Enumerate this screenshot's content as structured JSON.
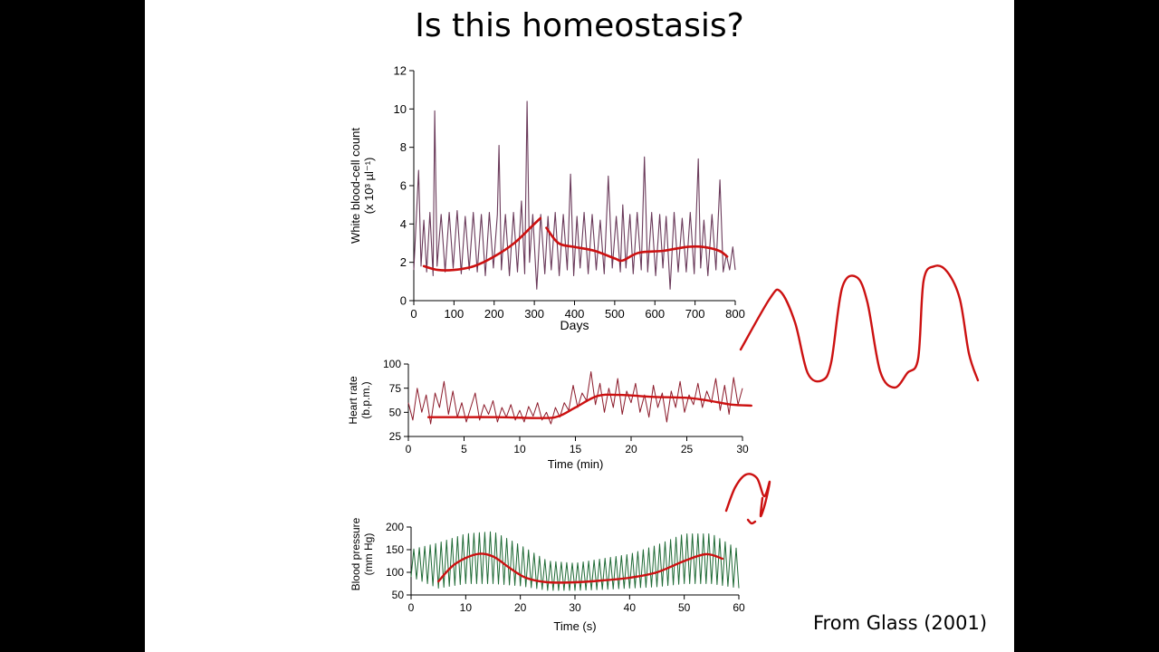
{
  "slide": {
    "title": "Is this homeostasis?",
    "citation": "From Glass (2001)"
  },
  "colors": {
    "trend": "#cc1111",
    "wbc_trace": "#6a3a5a",
    "hr_trace": "#8b1a2a",
    "bp_trace": "#1f6a35",
    "ink": "#000000",
    "annotation": "#cc1111"
  },
  "chart_data": [
    {
      "id": "wbc",
      "type": "line",
      "title": "",
      "xlabel": "Days",
      "ylabel": [
        "White blood-cell count",
        "(x 10³ µl⁻¹)"
      ],
      "xlim": [
        0,
        800
      ],
      "ylim": [
        0,
        12
      ],
      "xticks": [
        0,
        100,
        200,
        300,
        400,
        500,
        600,
        700,
        800
      ],
      "yticks": [
        0,
        2,
        4,
        6,
        8,
        10,
        12
      ],
      "grid": false,
      "series": [
        {
          "role": "trace",
          "x": [
            0,
            12,
            18,
            25,
            32,
            40,
            48,
            52,
            58,
            68,
            78,
            88,
            98,
            108,
            118,
            128,
            138,
            148,
            158,
            168,
            178,
            188,
            198,
            208,
            212,
            218,
            228,
            238,
            248,
            258,
            268,
            276,
            282,
            288,
            296,
            306,
            316,
            326,
            334,
            342,
            352,
            362,
            372,
            382,
            390,
            398,
            406,
            414,
            424,
            434,
            444,
            454,
            464,
            474,
            484,
            494,
            504,
            514,
            520,
            528,
            538,
            546,
            556,
            566,
            574,
            582,
            592,
            602,
            612,
            620,
            628,
            638,
            648,
            658,
            668,
            678,
            688,
            698,
            708,
            714,
            722,
            732,
            742,
            752,
            762,
            770,
            778,
            786,
            794,
            800
          ],
          "y": [
            1.6,
            6.8,
            1.8,
            4.2,
            1.5,
            4.6,
            1.3,
            9.9,
            1.8,
            4.5,
            1.5,
            4.6,
            1.7,
            4.7,
            1.4,
            4.4,
            1.6,
            4.6,
            1.5,
            4.5,
            1.3,
            4.6,
            1.7,
            4.5,
            8.1,
            1.6,
            4.5,
            1.3,
            4.6,
            1.5,
            5.2,
            1.4,
            10.4,
            2.0,
            4.5,
            0.6,
            4.5,
            1.4,
            4.4,
            1.6,
            4.6,
            1.3,
            4.5,
            1.6,
            6.6,
            1.3,
            4.4,
            1.7,
            4.6,
            1.4,
            4.5,
            1.6,
            4.2,
            1.4,
            6.5,
            1.7,
            4.4,
            1.5,
            5.0,
            1.7,
            4.5,
            1.4,
            4.6,
            1.6,
            7.5,
            1.5,
            4.6,
            1.3,
            4.5,
            1.7,
            4.4,
            0.6,
            4.6,
            1.5,
            4.3,
            1.5,
            4.6,
            1.4,
            7.4,
            1.7,
            4.2,
            1.3,
            4.5,
            1.6,
            6.3,
            1.5,
            2.4,
            1.6,
            2.8,
            1.6
          ]
        },
        {
          "role": "trend",
          "segments": [
            {
              "x": [
                25,
                60,
                100,
                150,
                200,
                250,
                290,
                315
              ],
              "y": [
                1.8,
                1.6,
                1.6,
                1.8,
                2.3,
                3.0,
                3.8,
                4.3
              ]
            },
            {
              "x": [
                330,
                360,
                400,
                450,
                500,
                520,
                560,
                620,
                680,
                720,
                760,
                780
              ],
              "y": [
                3.8,
                3.0,
                2.8,
                2.6,
                2.2,
                2.1,
                2.5,
                2.6,
                2.8,
                2.8,
                2.6,
                2.3
              ]
            }
          ]
        }
      ]
    },
    {
      "id": "hr",
      "type": "line",
      "title": "",
      "xlabel": "Time (min)",
      "ylabel": [
        "Heart rate",
        "(b.p.m.)"
      ],
      "xlim": [
        0,
        30
      ],
      "ylim": [
        25,
        100
      ],
      "xticks": [
        0,
        5,
        10,
        15,
        20,
        25,
        30
      ],
      "yticks": [
        25,
        50,
        75,
        100
      ],
      "grid": false,
      "series": [
        {
          "role": "trace",
          "x": [
            0,
            0.4,
            0.8,
            1.2,
            1.6,
            2.0,
            2.4,
            2.8,
            3.2,
            3.6,
            4.0,
            4.4,
            4.8,
            5.2,
            5.6,
            6.0,
            6.4,
            6.8,
            7.2,
            7.6,
            8.0,
            8.4,
            8.8,
            9.2,
            9.6,
            10.0,
            10.4,
            10.8,
            11.2,
            11.6,
            12.0,
            12.4,
            12.8,
            13.2,
            13.6,
            14.0,
            14.4,
            14.8,
            15.2,
            15.6,
            16.0,
            16.4,
            16.8,
            17.2,
            17.6,
            18.0,
            18.4,
            18.8,
            19.2,
            19.6,
            20.0,
            20.4,
            20.8,
            21.2,
            21.6,
            22.0,
            22.4,
            22.8,
            23.2,
            23.6,
            24.0,
            24.4,
            24.8,
            25.2,
            25.6,
            26.0,
            26.4,
            26.8,
            27.2,
            27.6,
            28.0,
            28.4,
            28.8,
            29.2,
            29.6,
            30.0
          ],
          "y": [
            60,
            42,
            75,
            50,
            68,
            38,
            70,
            55,
            82,
            48,
            72,
            45,
            60,
            40,
            55,
            70,
            42,
            58,
            48,
            62,
            40,
            55,
            45,
            58,
            42,
            52,
            40,
            56,
            46,
            60,
            42,
            50,
            38,
            55,
            45,
            60,
            52,
            78,
            55,
            70,
            62,
            92,
            58,
            80,
            50,
            75,
            55,
            85,
            48,
            72,
            60,
            80,
            50,
            68,
            45,
            78,
            55,
            70,
            40,
            72,
            55,
            82,
            50,
            68,
            58,
            80,
            55,
            72,
            60,
            85,
            52,
            78,
            48,
            86,
            58,
            75
          ]
        },
        {
          "role": "trend",
          "segments": [
            {
              "x": [
                1.8,
                4,
                8,
                12,
                13.5,
                15,
                17,
                19,
                22,
                25,
                27,
                29,
                30.8
              ],
              "y": [
                45,
                45,
                45,
                44,
                46,
                55,
                67,
                68,
                66,
                65,
                62,
                58,
                57
              ]
            }
          ]
        }
      ]
    },
    {
      "id": "bp",
      "type": "line",
      "title": "",
      "xlabel": "Time (s)",
      "ylabel": [
        "Blood pressure",
        "(mm Hg)"
      ],
      "xlim": [
        0,
        60
      ],
      "ylim": [
        50,
        200
      ],
      "xticks": [
        0,
        10,
        20,
        30,
        40,
        50,
        60
      ],
      "yticks": [
        50,
        100,
        150,
        200
      ],
      "grid": false,
      "series": [
        {
          "role": "trace",
          "oscillation": {
            "period_s": 1.0,
            "envelope_t": [
              0,
              5,
              10,
              15,
              20,
              25,
              30,
              35,
              40,
              45,
              50,
              55,
              60
            ],
            "envelope_max": [
              150,
              165,
              185,
              190,
              160,
              125,
              120,
              130,
              140,
              160,
              185,
              185,
              150
            ],
            "envelope_min": [
              90,
              65,
              75,
              75,
              70,
              60,
              60,
              62,
              65,
              68,
              75,
              75,
              65
            ]
          }
        },
        {
          "role": "trend",
          "segments": [
            {
              "x": [
                5,
                8,
                12,
                15,
                18,
                21,
                25,
                30,
                35,
                40,
                45,
                50,
                54,
                57
              ],
              "y": [
                80,
                118,
                140,
                135,
                110,
                88,
                78,
                78,
                82,
                88,
                100,
                125,
                140,
                130
              ]
            }
          ]
        }
      ]
    }
  ],
  "annotations": [
    {
      "id": "hand-drawn-oscillation",
      "x": [
        818,
        850,
        862,
        878,
        892,
        908,
        918,
        930,
        946,
        958,
        972,
        988,
        1002,
        1014,
        1020,
        1032,
        1046,
        1060,
        1070,
        1080
      ],
      "y": [
        386,
        330,
        322,
        356,
        412,
        420,
        400,
        318,
        306,
        334,
        410,
        428,
        412,
        396,
        310,
        294,
        300,
        330,
        390,
        420
      ]
    },
    {
      "id": "hand-drawn-peak",
      "x": [
        802,
        812,
        824,
        836,
        844,
        850,
        845,
        840,
        842
      ],
      "y": [
        564,
        538,
        524,
        528,
        548,
        532,
        556,
        570,
        550
      ]
    },
    {
      "id": "hand-drawn-dot",
      "x": [
        826,
        830,
        834
      ],
      "y": [
        574,
        578,
        576
      ]
    }
  ]
}
